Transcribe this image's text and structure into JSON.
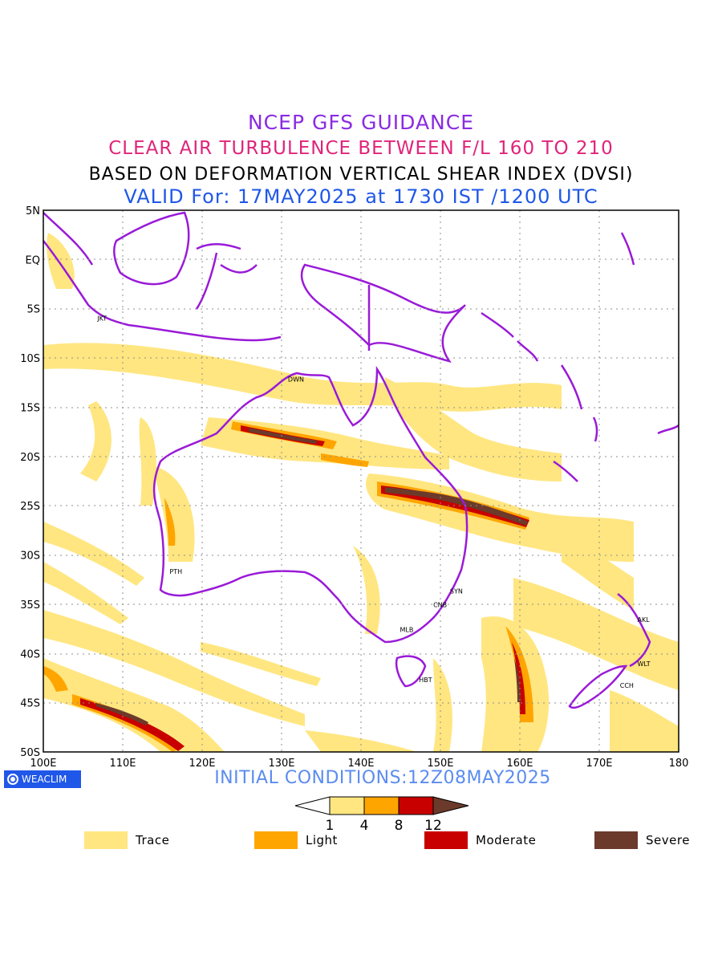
{
  "titles": {
    "line1": "NCEP GFS GUIDANCE",
    "line2": "CLEAR AIR TURBULENCE BETWEEN F/L 160 TO 210",
    "line3": "BASED ON DEFORMATION VERTICAL SHEAR INDEX (DVSI)",
    "line4": "VALID For: 17MAY2025 at 1730 IST /1200 UTC"
  },
  "map": {
    "lat_labels": [
      "5N",
      "EQ",
      "5S",
      "10S",
      "15S",
      "20S",
      "25S",
      "30S",
      "35S",
      "40S",
      "45S",
      "50S"
    ],
    "lon_labels": [
      "100E",
      "110E",
      "120E",
      "130E",
      "140E",
      "150E",
      "160E",
      "170E",
      "180"
    ],
    "cities": [
      {
        "code": "JKT",
        "lon": 106.8,
        "lat": -6.2
      },
      {
        "code": "DWN",
        "lon": 130.8,
        "lat": -12.4
      },
      {
        "code": "PTH",
        "lon": 115.9,
        "lat": -31.9
      },
      {
        "code": "SYN",
        "lon": 151.2,
        "lat": -33.9
      },
      {
        "code": "CNB",
        "lon": 149.1,
        "lat": -35.3
      },
      {
        "code": "MLB",
        "lon": 144.9,
        "lat": -37.8
      },
      {
        "code": "HBT",
        "lon": 147.3,
        "lat": -42.9
      },
      {
        "code": "AKL",
        "lon": 174.8,
        "lat": -36.8
      },
      {
        "code": "WLT",
        "lon": 174.8,
        "lat": -41.3
      },
      {
        "code": "CCH",
        "lon": 172.6,
        "lat": -43.5
      }
    ],
    "colors": {
      "trace": "#ffe680",
      "light": "#ffa500",
      "moderate": "#c80000",
      "severe": "#6b3a2a",
      "coast": "#9a1ad8"
    }
  },
  "footer": {
    "logo_text": "WEACLIM",
    "initial_conditions": "INITIAL CONDITIONS:12Z08MAY2025"
  },
  "colorbar": {
    "ticks": [
      "1",
      "4",
      "8",
      "12"
    ]
  },
  "legend": [
    {
      "label": "Trace",
      "color": "#ffe680"
    },
    {
      "label": "Light",
      "color": "#ffa500"
    },
    {
      "label": "Moderate",
      "color": "#c80000"
    },
    {
      "label": "Severe",
      "color": "#6b3a2a"
    }
  ]
}
